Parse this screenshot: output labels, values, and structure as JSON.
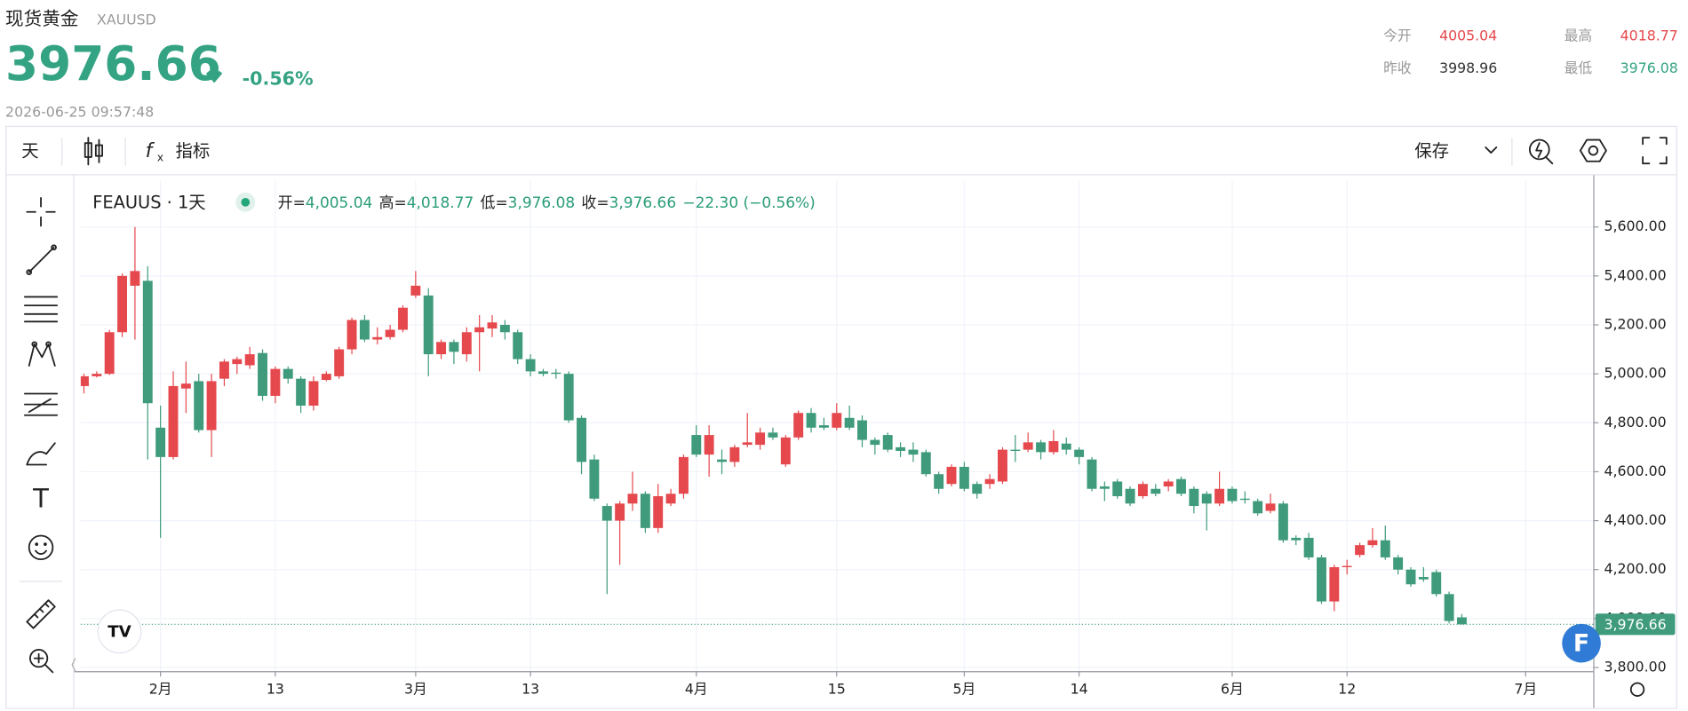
{
  "header": {
    "name": "现货黄金",
    "symbol": "XAUUSD",
    "price": "3976.66",
    "change": "-0.56%",
    "timestamp": "2026-06-25 09:57:48",
    "stats": [
      {
        "label": "今开",
        "value": "4005.04"
      },
      {
        "label": "最高",
        "value": "4018.77"
      },
      {
        "label": "昨收",
        "value": "3998.96"
      },
      {
        "label": "最低",
        "value": "3976.08"
      }
    ]
  },
  "toolbar": {
    "interval": "天",
    "indicators": "指标",
    "save": "保存"
  },
  "chart_data": {
    "type": "candlestick",
    "symbol_label": "FEAUUS · 1天",
    "legend": [
      {
        "key": "开=",
        "value": "4,005.04"
      },
      {
        "key": "高=",
        "value": "4,018.77"
      },
      {
        "key": "低=",
        "value": "3,976.08"
      },
      {
        "key": "收=",
        "value": "3,976.66"
      },
      {
        "value": "−22.30 (−0.56%)"
      }
    ],
    "open": [
      4950,
      4990,
      5000,
      5170,
      5360,
      5380,
      4780,
      4660,
      4940,
      4970,
      4770,
      4980,
      5040,
      5035,
      5085,
      4910,
      5020,
      4980,
      4870,
      4975,
      4990,
      5100,
      5220,
      5140,
      5150,
      5180,
      5320,
      5320,
      5080,
      5130,
      5080,
      5170,
      5185,
      5200,
      5170,
      5060,
      5010,
      5005,
      5000,
      4820,
      4650,
      4460,
      4400,
      4470,
      4510,
      4370,
      4470,
      4510,
      4750,
      4670,
      4650,
      4640,
      4710,
      4710,
      4760,
      4630,
      4740,
      4840,
      4790,
      4780,
      4820,
      4810,
      4730,
      4750,
      4700,
      4690,
      4680,
      4590,
      4550,
      4620,
      4550,
      4550,
      4560,
      4690,
      4690,
      4720,
      4680,
      4715,
      4690,
      4650,
      4540,
      4560,
      4530,
      4500,
      4530,
      4540,
      4570,
      4530,
      4510,
      4470,
      4530,
      4490,
      4480,
      4440,
      4470,
      4330,
      4330,
      4250,
      4070,
      4210,
      4260,
      4300,
      4320,
      4250,
      4200,
      4170,
      4190,
      4100,
      4005.04
    ],
    "high": [
      5000,
      5010,
      5180,
      5410,
      5600,
      5440,
      4870,
      5010,
      5050,
      5000,
      5000,
      5060,
      5070,
      5110,
      5100,
      5030,
      5030,
      4990,
      4990,
      5010,
      5110,
      5230,
      5240,
      5190,
      5200,
      5280,
      5420,
      5350,
      5140,
      5140,
      5190,
      5240,
      5240,
      5220,
      5180,
      5080,
      5020,
      5020,
      5010,
      4830,
      4670,
      4470,
      4480,
      4600,
      4520,
      4550,
      4530,
      4670,
      4790,
      4790,
      4690,
      4710,
      4840,
      4780,
      4780,
      4750,
      4850,
      4860,
      4820,
      4880,
      4870,
      4830,
      4740,
      4760,
      4720,
      4720,
      4690,
      4600,
      4630,
      4640,
      4560,
      4590,
      4700,
      4750,
      4760,
      4730,
      4770,
      4740,
      4700,
      4660,
      4560,
      4570,
      4540,
      4560,
      4550,
      4570,
      4580,
      4540,
      4520,
      4600,
      4540,
      4520,
      4490,
      4510,
      4480,
      4340,
      4350,
      4260,
      4220,
      4240,
      4310,
      4370,
      4380,
      4260,
      4210,
      4210,
      4200,
      4110,
      4018.77
    ],
    "low": [
      4920,
      4985,
      4995,
      5150,
      5140,
      4650,
      4330,
      4650,
      4840,
      4760,
      4660,
      4950,
      5000,
      5020,
      4890,
      4880,
      4960,
      4840,
      4850,
      4970,
      4980,
      5080,
      5130,
      5120,
      5140,
      5170,
      5310,
      4990,
      5060,
      5040,
      5050,
      5010,
      5150,
      5140,
      5040,
      4990,
      4990,
      4980,
      4800,
      4590,
      4480,
      4100,
      4220,
      4440,
      4350,
      4350,
      4460,
      4490,
      4660,
      4580,
      4590,
      4620,
      4700,
      4690,
      4730,
      4620,
      4730,
      4760,
      4770,
      4770,
      4770,
      4700,
      4670,
      4680,
      4660,
      4640,
      4580,
      4510,
      4540,
      4520,
      4490,
      4530,
      4550,
      4640,
      4680,
      4650,
      4670,
      4670,
      4630,
      4520,
      4480,
      4490,
      4460,
      4490,
      4500,
      4520,
      4500,
      4430,
      4360,
      4460,
      4470,
      4470,
      4420,
      4430,
      4310,
      4300,
      4240,
      4060,
      4030,
      4180,
      4250,
      4290,
      4240,
      4180,
      4130,
      4150,
      4090,
      3980,
      3976.08
    ],
    "close": [
      4990,
      5000,
      5170,
      5400,
      5420,
      4880,
      4660,
      4950,
      4960,
      4770,
      4970,
      5050,
      5060,
      5080,
      4910,
      5020,
      4980,
      4870,
      4970,
      5000,
      5100,
      5220,
      5140,
      5150,
      5180,
      5270,
      5360,
      5080,
      5130,
      5090,
      5170,
      5190,
      5210,
      5170,
      5060,
      5010,
      5000,
      5000,
      4810,
      4640,
      4490,
      4400,
      4470,
      4510,
      4370,
      4500,
      4510,
      4660,
      4670,
      4750,
      4640,
      4700,
      4720,
      4760,
      4740,
      4740,
      4840,
      4780,
      4780,
      4840,
      4780,
      4730,
      4710,
      4690,
      4685,
      4670,
      4590,
      4530,
      4620,
      4530,
      4510,
      4570,
      4690,
      4685,
      4720,
      4680,
      4725,
      4690,
      4660,
      4530,
      4530,
      4500,
      4470,
      4550,
      4510,
      4560,
      4510,
      4460,
      4470,
      4530,
      4480,
      4485,
      4430,
      4470,
      4320,
      4320,
      4250,
      4070,
      4210,
      4215,
      4300,
      4320,
      4250,
      4200,
      4140,
      4160,
      4100,
      3990,
      3976.66
    ],
    "up_color": "#e5484d",
    "down_color": "#3f9b7c",
    "xlim": [
      -0.25,
      118.3
    ],
    "xticks": [
      {
        "value": 6,
        "label": "2月"
      },
      {
        "value": 15,
        "label": "13"
      },
      {
        "value": 26,
        "label": "3月"
      },
      {
        "value": 35,
        "label": "13"
      },
      {
        "value": 48,
        "label": "4月"
      },
      {
        "value": 59,
        "label": "15"
      },
      {
        "value": 69,
        "label": "5月"
      },
      {
        "value": 78,
        "label": "14"
      },
      {
        "value": 90,
        "label": "6月"
      },
      {
        "value": 99,
        "label": "12"
      },
      {
        "value": 113,
        "label": "7月"
      }
    ],
    "ylim": [
      3785,
      5789
    ],
    "yticks": [
      {
        "value": 3800,
        "label": "3,800.00"
      },
      {
        "value": 4000,
        "label": "4,000.00"
      },
      {
        "value": 4200,
        "label": "4,200.00"
      },
      {
        "value": 4400,
        "label": "4,400.00"
      },
      {
        "value": 4600,
        "label": "4,600.00"
      },
      {
        "value": 4800,
        "label": "4,800.00"
      },
      {
        "value": 5000,
        "label": "5,000.00"
      },
      {
        "value": 5200,
        "label": "5,200.00"
      },
      {
        "value": 5400,
        "label": "5,400.00"
      },
      {
        "value": 5600,
        "label": "5,600.00"
      }
    ],
    "grid": true,
    "last_price": {
      "value": 3976.66,
      "label": "3,976.66"
    }
  }
}
